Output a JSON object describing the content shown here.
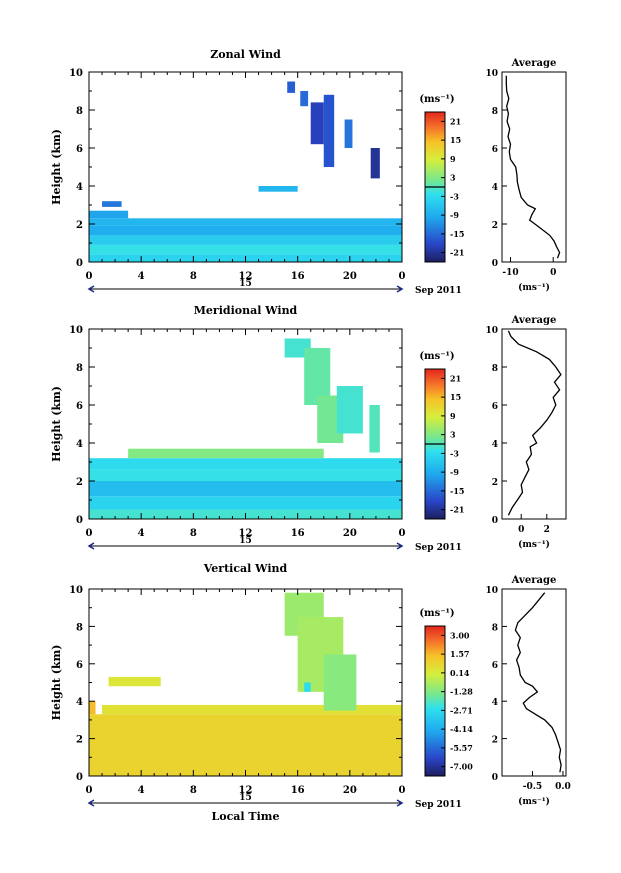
{
  "chart_data": [
    {
      "type": "heatmap",
      "title": "Zonal Wind",
      "ylabel": "Height (km)",
      "x_ticks": [
        "0",
        "4",
        "8",
        "12",
        "16",
        "20",
        "0"
      ],
      "y_ticks": [
        "0",
        "2",
        "4",
        "6",
        "8",
        "10"
      ],
      "xlim": [
        0,
        24
      ],
      "ylim": [
        0,
        10
      ],
      "date_marker": "15",
      "date_label": "Sep 2011",
      "unit": "(ms⁻¹)",
      "colorbar": {
        "ticks": [
          "21",
          "15",
          "9",
          "3",
          "-3",
          "-9",
          "-15",
          "-21"
        ],
        "range": [
          -24,
          24
        ],
        "zero_line": true
      },
      "average": {
        "title": "Average",
        "xlabel": "(ms⁻¹)",
        "xlim": [
          -12,
          3
        ],
        "x_ticks": [
          "-10",
          "0"
        ],
        "profile": [
          [
            1.0,
            0.2
          ],
          [
            1.5,
            0.5
          ],
          [
            0.8,
            0.8
          ],
          [
            0.2,
            1.1
          ],
          [
            -0.8,
            1.4
          ],
          [
            -2.5,
            1.7
          ],
          [
            -4.3,
            2.0
          ],
          [
            -5.5,
            2.2
          ],
          [
            -5.0,
            2.5
          ],
          [
            -4.2,
            2.8
          ],
          [
            -6.0,
            3.0
          ],
          [
            -7.5,
            3.4
          ],
          [
            -8.0,
            3.8
          ],
          [
            -8.4,
            4.2
          ],
          [
            -8.5,
            4.6
          ],
          [
            -8.8,
            5.0
          ],
          [
            -10.0,
            5.4
          ],
          [
            -10.3,
            5.8
          ],
          [
            -10.0,
            6.2
          ],
          [
            -10.6,
            6.6
          ],
          [
            -10.2,
            7.0
          ],
          [
            -10.8,
            7.4
          ],
          [
            -10.5,
            7.8
          ],
          [
            -10.9,
            8.2
          ],
          [
            -10.4,
            8.6
          ],
          [
            -10.9,
            9.0
          ],
          [
            -11.0,
            9.4
          ],
          [
            -11.0,
            9.8
          ]
        ]
      },
      "regions": [
        {
          "x": [
            0,
            24
          ],
          "y": [
            0.0,
            0.4
          ],
          "v": -4
        },
        {
          "x": [
            0,
            24
          ],
          "y": [
            0.4,
            0.9
          ],
          "v": -2
        },
        {
          "x": [
            0,
            24
          ],
          "y": [
            0.9,
            1.4
          ],
          "v": -5
        },
        {
          "x": [
            0,
            24
          ],
          "y": [
            1.4,
            1.9
          ],
          "v": -9
        },
        {
          "x": [
            0,
            24
          ],
          "y": [
            1.9,
            2.3
          ],
          "v": -8
        },
        {
          "x": [
            0,
            3
          ],
          "y": [
            2.3,
            2.7
          ],
          "v": -10
        },
        {
          "x": [
            13,
            16
          ],
          "y": [
            3.7,
            4.0
          ],
          "v": -8
        },
        {
          "x": [
            1,
            2.5
          ],
          "y": [
            2.9,
            3.2
          ],
          "v": -14
        },
        {
          "x": [
            15.2,
            15.8
          ],
          "y": [
            8.9,
            9.5
          ],
          "v": -16
        },
        {
          "x": [
            16.2,
            16.8
          ],
          "y": [
            8.2,
            9.0
          ],
          "v": -15
        },
        {
          "x": [
            17.0,
            18.0
          ],
          "y": [
            6.2,
            8.4
          ],
          "v": -19
        },
        {
          "x": [
            18.0,
            18.8
          ],
          "y": [
            5.0,
            8.8
          ],
          "v": -17
        },
        {
          "x": [
            19.6,
            20.2
          ],
          "y": [
            6.0,
            7.5
          ],
          "v": -14
        },
        {
          "x": [
            21.6,
            22.3
          ],
          "y": [
            4.4,
            6.0
          ],
          "v": -21
        }
      ]
    },
    {
      "type": "heatmap",
      "title": "Meridional Wind",
      "ylabel": "Height (km)",
      "x_ticks": [
        "0",
        "4",
        "8",
        "12",
        "16",
        "20",
        "0"
      ],
      "y_ticks": [
        "0",
        "2",
        "4",
        "6",
        "8",
        "10"
      ],
      "xlim": [
        0,
        24
      ],
      "ylim": [
        0,
        10
      ],
      "date_marker": "15",
      "date_label": "Sep 2011",
      "unit": "(ms⁻¹)",
      "colorbar": {
        "ticks": [
          "21",
          "15",
          "9",
          "3",
          "-3",
          "-9",
          "-15",
          "-21"
        ],
        "range": [
          -24,
          24
        ],
        "zero_line": true
      },
      "average": {
        "title": "Average",
        "xlabel": "(ms⁻¹)",
        "xlim": [
          -1.5,
          3.5
        ],
        "x_ticks": [
          "0",
          "2"
        ],
        "profile": [
          [
            -1.0,
            0.2
          ],
          [
            -0.7,
            0.6
          ],
          [
            -0.3,
            1.0
          ],
          [
            0.1,
            1.4
          ],
          [
            0.0,
            1.8
          ],
          [
            0.3,
            2.2
          ],
          [
            0.6,
            2.6
          ],
          [
            0.4,
            3.0
          ],
          [
            0.8,
            3.4
          ],
          [
            0.7,
            3.8
          ],
          [
            1.2,
            4.0
          ],
          [
            0.9,
            4.4
          ],
          [
            1.5,
            4.8
          ],
          [
            2.0,
            5.2
          ],
          [
            2.4,
            5.6
          ],
          [
            2.7,
            6.0
          ],
          [
            2.5,
            6.4
          ],
          [
            3.0,
            6.8
          ],
          [
            2.6,
            7.2
          ],
          [
            3.1,
            7.6
          ],
          [
            2.7,
            8.0
          ],
          [
            2.2,
            8.4
          ],
          [
            1.2,
            8.8
          ],
          [
            -0.2,
            9.2
          ],
          [
            -0.8,
            9.6
          ],
          [
            -1.0,
            9.9
          ]
        ]
      },
      "regions": [
        {
          "x": [
            0,
            24
          ],
          "y": [
            0.0,
            0.5
          ],
          "v": -1
        },
        {
          "x": [
            0,
            24
          ],
          "y": [
            0.5,
            1.2
          ],
          "v": -4
        },
        {
          "x": [
            0,
            24
          ],
          "y": [
            1.2,
            2.0
          ],
          "v": -7
        },
        {
          "x": [
            0,
            24
          ],
          "y": [
            2.0,
            2.6
          ],
          "v": -2
        },
        {
          "x": [
            0,
            24
          ],
          "y": [
            2.6,
            3.2
          ],
          "v": -3
        },
        {
          "x": [
            3,
            18
          ],
          "y": [
            3.2,
            3.7
          ],
          "v": 3
        },
        {
          "x": [
            15,
            17
          ],
          "y": [
            8.5,
            9.5
          ],
          "v": -1
        },
        {
          "x": [
            16.5,
            18.5
          ],
          "y": [
            6.0,
            9.0
          ],
          "v": 1
        },
        {
          "x": [
            17.5,
            19.5
          ],
          "y": [
            4.0,
            6.5
          ],
          "v": 2
        },
        {
          "x": [
            19.0,
            21.0
          ],
          "y": [
            4.5,
            7.0
          ],
          "v": -1
        },
        {
          "x": [
            21.5,
            22.3
          ],
          "y": [
            3.5,
            6.0
          ],
          "v": 0
        }
      ]
    },
    {
      "type": "heatmap",
      "title": "Vertical Wind",
      "ylabel": "Height (km)",
      "xlabel": "Local Time",
      "x_ticks": [
        "0",
        "4",
        "8",
        "12",
        "16",
        "20",
        "0"
      ],
      "y_ticks": [
        "0",
        "2",
        "4",
        "6",
        "8",
        "10"
      ],
      "xlim": [
        0,
        24
      ],
      "ylim": [
        0,
        10
      ],
      "date_marker": "15",
      "date_label": "Sep 2011",
      "unit": "(ms⁻¹)",
      "colorbar": {
        "ticks": [
          "3.00",
          "1.57",
          "0.14",
          "-1.28",
          "-2.71",
          "-4.14",
          "-5.57",
          "-7.00"
        ],
        "range": [
          -7.7,
          3.7
        ],
        "zero_line": false
      },
      "average": {
        "title": "Average",
        "xlabel": "(ms⁻¹)",
        "xlim": [
          -1.0,
          0.05
        ],
        "x_ticks": [
          "-0.5",
          "0.0"
        ],
        "profile": [
          [
            -0.05,
            0.2
          ],
          [
            -0.03,
            0.6
          ],
          [
            -0.06,
            1.0
          ],
          [
            -0.04,
            1.4
          ],
          [
            -0.08,
            1.8
          ],
          [
            -0.12,
            2.2
          ],
          [
            -0.18,
            2.6
          ],
          [
            -0.3,
            3.0
          ],
          [
            -0.45,
            3.3
          ],
          [
            -0.6,
            3.6
          ],
          [
            -0.65,
            3.9
          ],
          [
            -0.55,
            4.2
          ],
          [
            -0.42,
            4.5
          ],
          [
            -0.5,
            4.8
          ],
          [
            -0.62,
            5.0
          ],
          [
            -0.7,
            5.4
          ],
          [
            -0.72,
            5.8
          ],
          [
            -0.76,
            6.2
          ],
          [
            -0.7,
            6.6
          ],
          [
            -0.74,
            7.0
          ],
          [
            -0.7,
            7.4
          ],
          [
            -0.78,
            7.8
          ],
          [
            -0.74,
            8.2
          ],
          [
            -0.62,
            8.6
          ],
          [
            -0.5,
            9.0
          ],
          [
            -0.4,
            9.4
          ],
          [
            -0.3,
            9.8
          ]
        ]
      },
      "regions": [
        {
          "x": [
            0,
            24
          ],
          "y": [
            0.0,
            3.3
          ],
          "v": 0.9
        },
        {
          "x": [
            1,
            24
          ],
          "y": [
            3.3,
            3.8
          ],
          "v": 0.5
        },
        {
          "x": [
            0,
            0.5
          ],
          "y": [
            3.3,
            4.0
          ],
          "v": 1.5
        },
        {
          "x": [
            1.5,
            5.5
          ],
          "y": [
            4.8,
            5.3
          ],
          "v": 0.3
        },
        {
          "x": [
            15,
            18
          ],
          "y": [
            7.5,
            9.8
          ],
          "v": -0.9
        },
        {
          "x": [
            16,
            19.5
          ],
          "y": [
            4.5,
            8.5
          ],
          "v": -0.7
        },
        {
          "x": [
            18,
            20.5
          ],
          "y": [
            3.5,
            6.5
          ],
          "v": -1.2
        },
        {
          "x": [
            16.5,
            17
          ],
          "y": [
            4.5,
            5.0
          ],
          "v": -2.7
        }
      ]
    }
  ]
}
